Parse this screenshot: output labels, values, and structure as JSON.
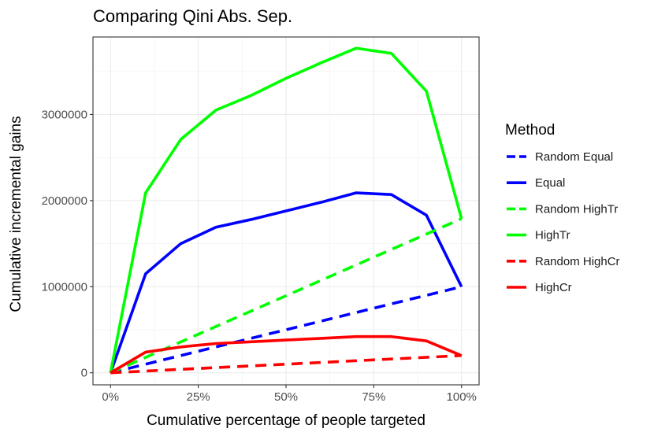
{
  "chart_data": {
    "type": "line",
    "title": "Comparing Qini Abs. Sep.",
    "xlabel": "Cumulative percentage of people targeted",
    "ylabel": "Cumulative incremental gains",
    "xlim": [
      -0.05,
      1.05
    ],
    "ylim": [
      -140000,
      3900000
    ],
    "x_ticks": [
      0,
      0.25,
      0.5,
      0.75,
      1.0
    ],
    "x_tick_labels": [
      "0%",
      "25%",
      "50%",
      "75%",
      "100%"
    ],
    "y_ticks": [
      0,
      1000000,
      2000000,
      3000000
    ],
    "y_tick_labels": [
      "0",
      "1000000",
      "2000000",
      "3000000"
    ],
    "grid": true,
    "legend": {
      "title": "Method",
      "placement": "right"
    },
    "series": [
      {
        "name": "Random Equal",
        "color": "#0000ff",
        "dash": "dashed",
        "x": [
          0,
          1.0
        ],
        "y": [
          0,
          1000000
        ]
      },
      {
        "name": "Equal",
        "color": "#0000ff",
        "dash": "solid",
        "x": [
          0,
          0.1,
          0.2,
          0.3,
          0.4,
          0.5,
          0.6,
          0.7,
          0.8,
          0.9,
          1.0
        ],
        "y": [
          0,
          1150000,
          1500000,
          1690000,
          1780000,
          1880000,
          1980000,
          2090000,
          2070000,
          1830000,
          1000000
        ]
      },
      {
        "name": "Random HighTr",
        "color": "#00ff00",
        "dash": "dashed",
        "x": [
          0,
          1.0
        ],
        "y": [
          0,
          1790000
        ]
      },
      {
        "name": "HighTr",
        "color": "#00ff00",
        "dash": "solid",
        "x": [
          0,
          0.1,
          0.2,
          0.3,
          0.4,
          0.5,
          0.6,
          0.7,
          0.8,
          0.9,
          1.0
        ],
        "y": [
          0,
          2090000,
          2710000,
          3050000,
          3220000,
          3420000,
          3600000,
          3770000,
          3710000,
          3270000,
          1790000
        ]
      },
      {
        "name": "Random HighCr",
        "color": "#ff0000",
        "dash": "dashed",
        "x": [
          0,
          1.0
        ],
        "y": [
          0,
          200000
        ]
      },
      {
        "name": "HighCr",
        "color": "#ff0000",
        "dash": "solid",
        "x": [
          0,
          0.1,
          0.2,
          0.3,
          0.4,
          0.5,
          0.6,
          0.7,
          0.8,
          0.9,
          1.0
        ],
        "y": [
          0,
          240000,
          300000,
          340000,
          360000,
          380000,
          400000,
          420000,
          420000,
          370000,
          200000
        ]
      }
    ]
  }
}
